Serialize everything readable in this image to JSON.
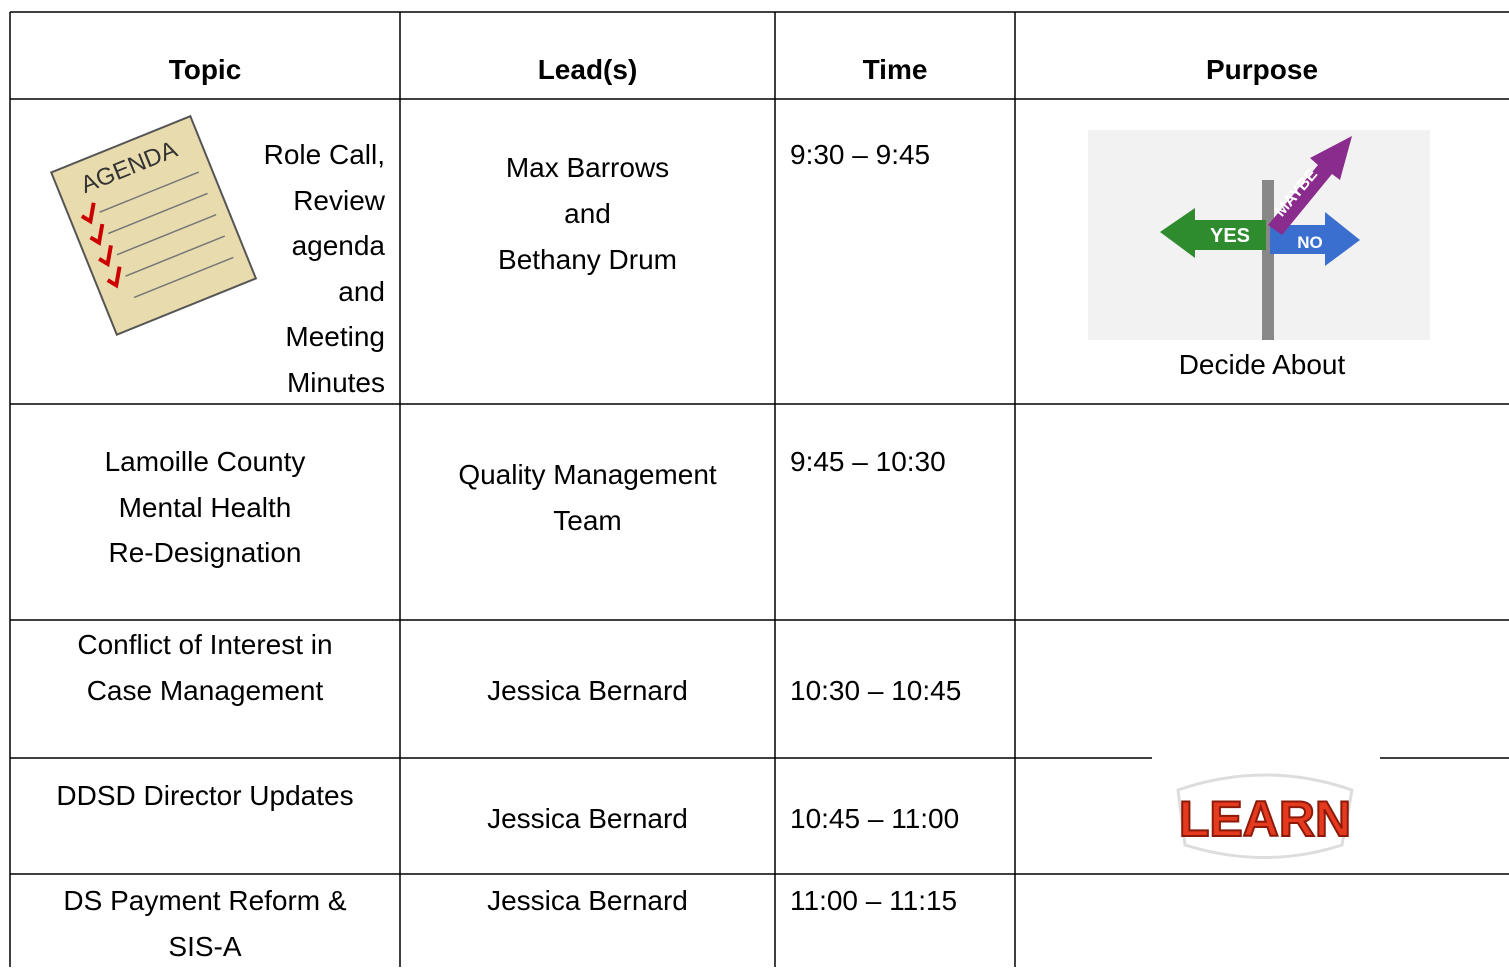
{
  "header": {
    "columns": [
      "Topic",
      "Lead(s)",
      "Time",
      "Purpose"
    ]
  },
  "rows": [
    {
      "topic": [
        "Role Call,",
        "Review",
        "agenda",
        "and",
        "Meeting",
        "Minutes"
      ],
      "leads": [
        "Max Barrows",
        "and",
        "Bethany Drum"
      ],
      "time": "9:30 – 9:45",
      "purpose": "Decide About"
    },
    {
      "topic": [
        "Lamoille County",
        "Mental Health",
        "Re-Designation"
      ],
      "leads": [
        "Quality Management",
        "Team"
      ],
      "time": "9:45 – 10:30"
    },
    {
      "topic": [
        "Conflict of Interest in",
        "Case Management"
      ],
      "leads": [
        "Jessica Bernard"
      ],
      "time": "10:30 – 10:45"
    },
    {
      "topic": [
        "DDSD Director Updates"
      ],
      "leads": [
        "Jessica Bernard"
      ],
      "time": "10:45 – 11:00"
    },
    {
      "topic": [
        "DS Payment Reform &",
        "SIS-A"
      ],
      "leads": [
        "Jessica Bernard"
      ],
      "time": "11:00 – 11:15"
    }
  ],
  "images": {
    "agenda": "AGENDA",
    "signpost": [
      "YES",
      "MAYBE",
      "NO"
    ],
    "learn": "LEARN"
  }
}
